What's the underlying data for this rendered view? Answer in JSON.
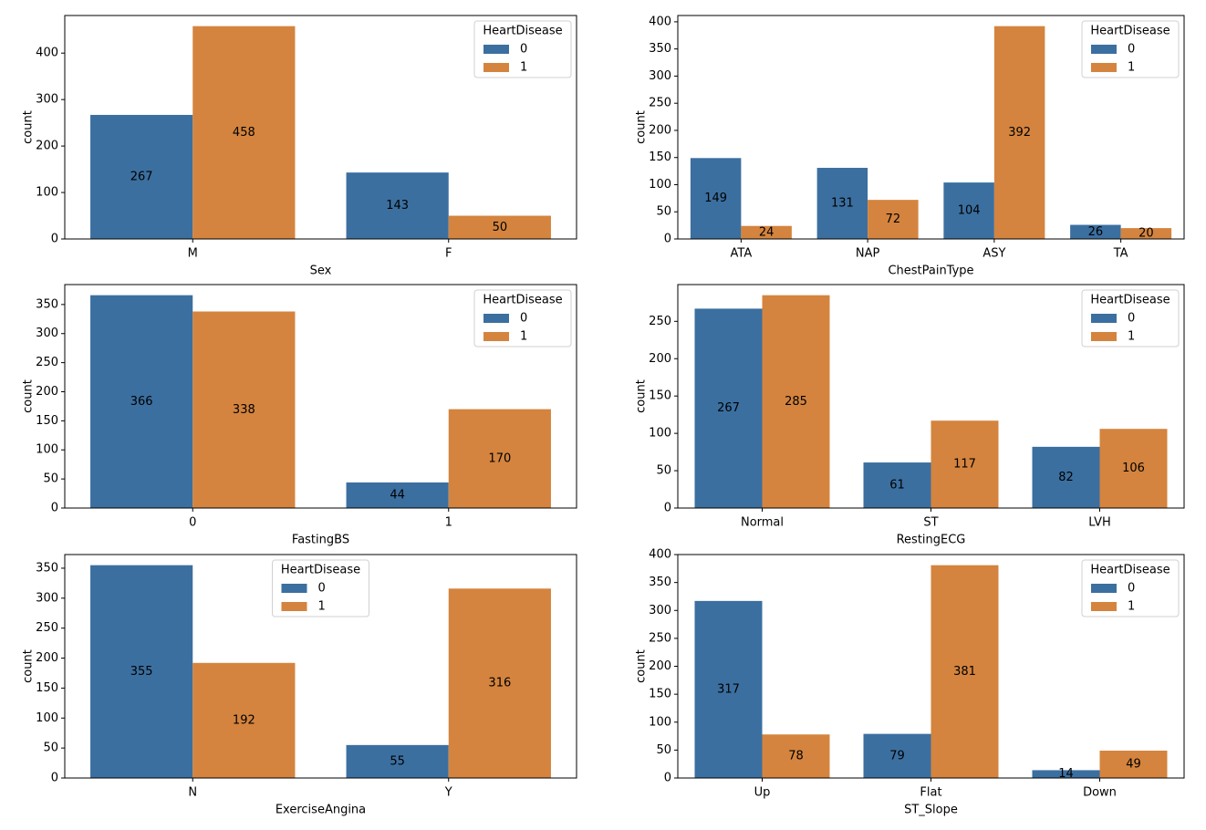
{
  "chart_data": [
    {
      "type": "bar",
      "xlabel": "Sex",
      "ylabel": "count",
      "categories": [
        "M",
        "F"
      ],
      "legend_title": "HeartDisease",
      "legend": "upper right",
      "series": [
        {
          "name": "0",
          "color": "#3b6fa0",
          "values": [
            267,
            143
          ]
        },
        {
          "name": "1",
          "color": "#d4843e",
          "values": [
            458,
            50
          ]
        }
      ],
      "ylim": [
        0,
        480.9
      ],
      "yticks": [
        0,
        100,
        200,
        300,
        400
      ]
    },
    {
      "type": "bar",
      "xlabel": "ChestPainType",
      "ylabel": "count",
      "categories": [
        "ATA",
        "NAP",
        "ASY",
        "TA"
      ],
      "legend_title": "HeartDisease",
      "legend": "upper right",
      "series": [
        {
          "name": "0",
          "color": "#3b6fa0",
          "values": [
            149,
            131,
            104,
            26
          ]
        },
        {
          "name": "1",
          "color": "#d4843e",
          "values": [
            24,
            72,
            392,
            20
          ]
        }
      ],
      "ylim": [
        0,
        411.6
      ],
      "yticks": [
        0,
        50,
        100,
        150,
        200,
        250,
        300,
        350,
        400
      ]
    },
    {
      "type": "bar",
      "xlabel": "FastingBS",
      "ylabel": "count",
      "categories": [
        "0",
        "1"
      ],
      "legend_title": "HeartDisease",
      "legend": "upper right",
      "series": [
        {
          "name": "0",
          "color": "#3b6fa0",
          "values": [
            366,
            44
          ]
        },
        {
          "name": "1",
          "color": "#d4843e",
          "values": [
            338,
            170
          ]
        }
      ],
      "ylim": [
        0,
        384.3
      ],
      "yticks": [
        0,
        50,
        100,
        150,
        200,
        250,
        300,
        350
      ]
    },
    {
      "type": "bar",
      "xlabel": "RestingECG",
      "ylabel": "count",
      "categories": [
        "Normal",
        "ST",
        "LVH"
      ],
      "legend_title": "HeartDisease",
      "legend": "upper right",
      "series": [
        {
          "name": "0",
          "color": "#3b6fa0",
          "values": [
            267,
            61,
            82
          ]
        },
        {
          "name": "1",
          "color": "#d4843e",
          "values": [
            285,
            117,
            106
          ]
        }
      ],
      "ylim": [
        0,
        299.25
      ],
      "yticks": [
        0,
        50,
        100,
        150,
        200,
        250
      ]
    },
    {
      "type": "bar",
      "xlabel": "ExerciseAngina",
      "ylabel": "count",
      "categories": [
        "N",
        "Y"
      ],
      "legend_title": "HeartDisease",
      "legend": "upper center",
      "series": [
        {
          "name": "0",
          "color": "#3b6fa0",
          "values": [
            355,
            55
          ]
        },
        {
          "name": "1",
          "color": "#d4843e",
          "values": [
            192,
            316
          ]
        }
      ],
      "ylim": [
        0,
        372.75
      ],
      "yticks": [
        0,
        50,
        100,
        150,
        200,
        250,
        300,
        350
      ]
    },
    {
      "type": "bar",
      "xlabel": "ST_Slope",
      "ylabel": "count",
      "categories": [
        "Up",
        "Flat",
        "Down"
      ],
      "legend_title": "HeartDisease",
      "legend": "upper right",
      "series": [
        {
          "name": "0",
          "color": "#3b6fa0",
          "values": [
            317,
            79,
            14
          ]
        },
        {
          "name": "1",
          "color": "#d4843e",
          "values": [
            78,
            381,
            49
          ]
        }
      ],
      "ylim": [
        0,
        400.05
      ],
      "yticks": [
        0,
        50,
        100,
        150,
        200,
        250,
        300,
        350,
        400
      ]
    }
  ]
}
